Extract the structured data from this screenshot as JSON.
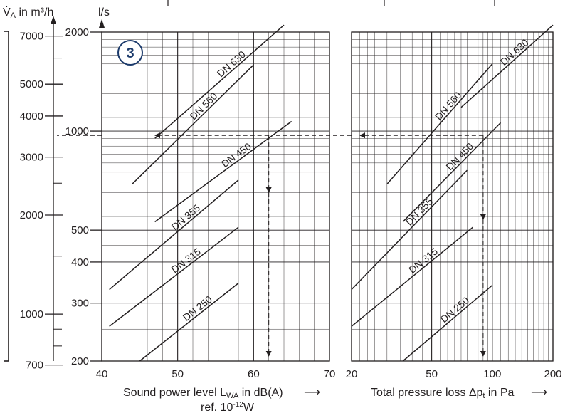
{
  "chart_data": {
    "type": "line",
    "badge": "3",
    "colors": {
      "ink": "#231f20",
      "badge": "#1b3a6b"
    },
    "flow_axis_m3h": {
      "label_prefix": "V̇",
      "label_sub": "A",
      "label_suffix": " in m³/h",
      "ticks": [
        {
          "value": 7000,
          "label": "7000"
        },
        {
          "value": 5000,
          "label": "5000"
        },
        {
          "value": 4000,
          "label": "4000"
        },
        {
          "value": 3000,
          "label": "3000"
        },
        {
          "value": 2000,
          "label": "2000"
        },
        {
          "value": 1000,
          "label": "1000"
        },
        {
          "value": 700,
          "label": "700"
        }
      ],
      "minor": [
        6000,
        2500,
        1500,
        900,
        800
      ]
    },
    "flow_axis_ls": {
      "label": "l/s",
      "ylim": [
        200,
        2000
      ],
      "scale": "log",
      "ticks": [
        {
          "value": 2000,
          "label": "2000"
        },
        {
          "value": 1000,
          "label": "1000"
        },
        {
          "value": 500,
          "label": "500"
        },
        {
          "value": 400,
          "label": "400"
        },
        {
          "value": 300,
          "label": "300"
        },
        {
          "value": 200,
          "label": "200"
        }
      ]
    },
    "sound_panel": {
      "xlim": [
        40,
        70
      ],
      "scale": "linear",
      "xlabel_main": "Sound power level L",
      "xlabel_sub": "WA",
      "xlabel_tail": " in dB(A)",
      "xlabel_ref": "ref. 10",
      "xlabel_ref_sup": "-12",
      "xlabel_ref_tail": "W",
      "arrow": "⟶",
      "ticks": [
        {
          "value": 40,
          "label": "40"
        },
        {
          "value": 50,
          "label": "50"
        },
        {
          "value": 60,
          "label": "60"
        },
        {
          "value": 70,
          "label": "70"
        }
      ],
      "series": [
        {
          "name": "DN 630",
          "x": [
            47,
            64
          ],
          "y": [
            950,
            2100
          ]
        },
        {
          "name": "DN 560",
          "x": [
            44,
            60
          ],
          "y": [
            690,
            1590
          ]
        },
        {
          "name": "DN 450",
          "x": [
            47,
            65
          ],
          "y": [
            530,
            1070
          ]
        },
        {
          "name": "DN 355",
          "x": [
            41,
            58
          ],
          "y": [
            330,
            710
          ]
        },
        {
          "name": "DN 315",
          "x": [
            41,
            58
          ],
          "y": [
            255,
            510
          ]
        },
        {
          "name": "DN 250",
          "x": [
            45,
            58
          ],
          "y": [
            200,
            345
          ]
        }
      ],
      "reading": {
        "flow": 970,
        "value": 62
      }
    },
    "pressure_panel": {
      "xlim": [
        20,
        200
      ],
      "scale": "log",
      "xlabel_main": "Total pressure loss Δp",
      "xlabel_sub": "t",
      "xlabel_tail": " in Pa",
      "arrow": "⟶",
      "ticks": [
        {
          "value": 20,
          "label": "20"
        },
        {
          "value": 50,
          "label": "50"
        },
        {
          "value": 100,
          "label": "100"
        },
        {
          "value": 200,
          "label": "200"
        }
      ],
      "series": [
        {
          "name": "DN 630",
          "x": [
            70,
            200
          ],
          "y": [
            1180,
            2100
          ]
        },
        {
          "name": "DN 560",
          "x": [
            30,
            100
          ],
          "y": [
            690,
            1600
          ]
        },
        {
          "name": "DN 450",
          "x": [
            36,
            110
          ],
          "y": [
            530,
            1060
          ]
        },
        {
          "name": "DN 355",
          "x": [
            20,
            75
          ],
          "y": [
            330,
            760
          ]
        },
        {
          "name": "DN 315",
          "x": [
            20,
            80
          ],
          "y": [
            255,
            510
          ]
        },
        {
          "name": "DN 250",
          "x": [
            36,
            100
          ],
          "y": [
            200,
            340
          ]
        }
      ],
      "reading": {
        "flow": 970,
        "value": 90
      }
    }
  }
}
